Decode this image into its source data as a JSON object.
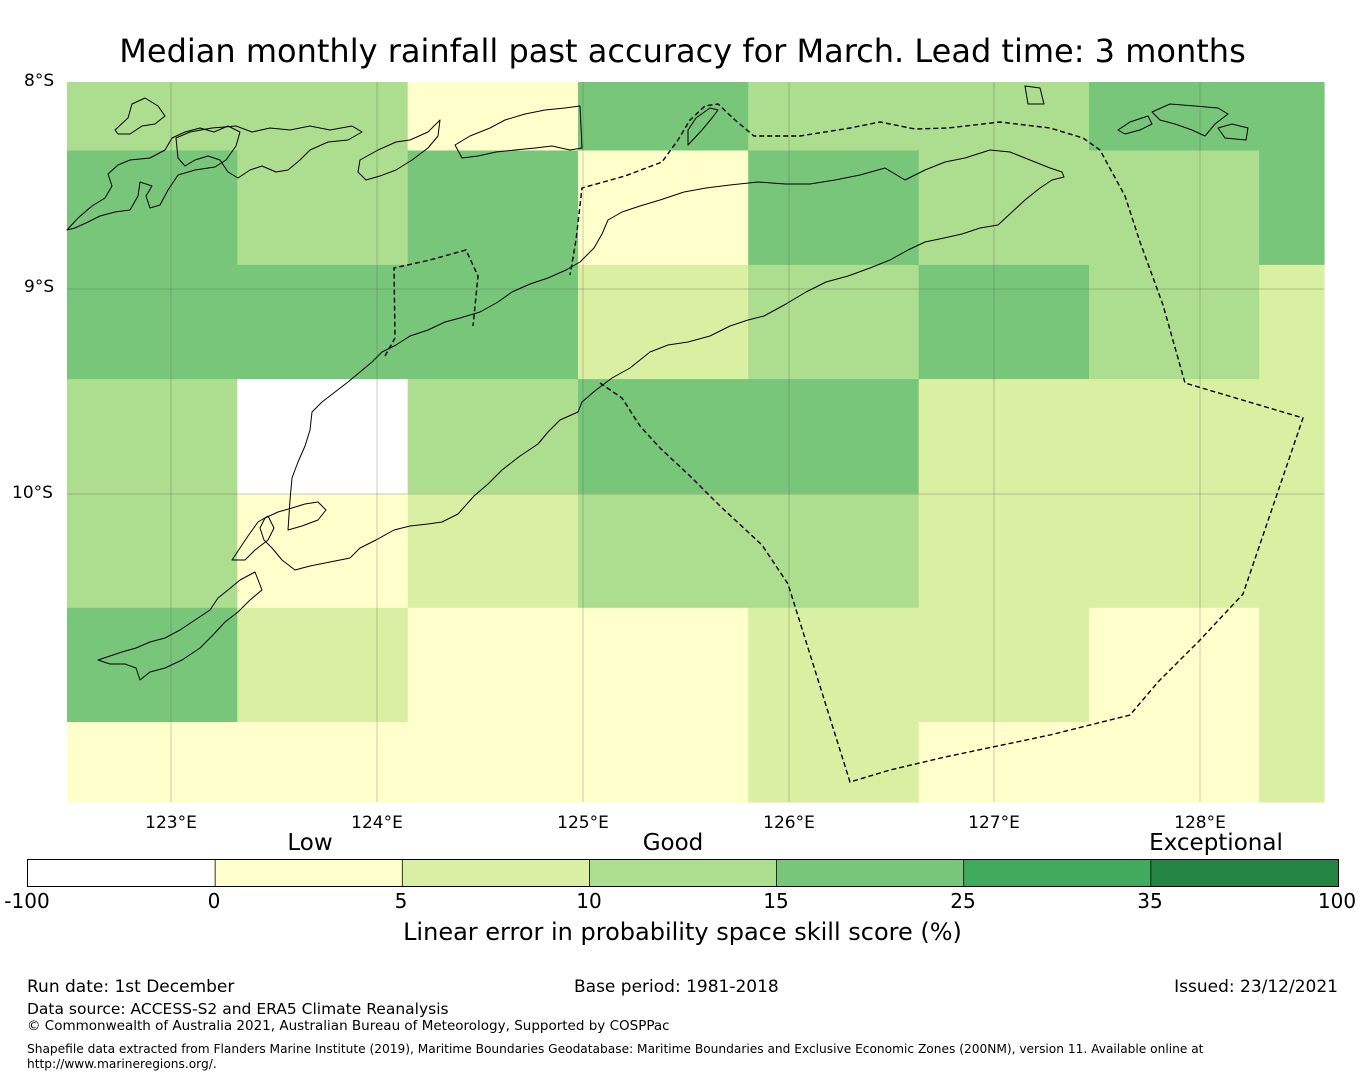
{
  "title": "Median monthly rainfall past accuracy for March. Lead time: 3 months",
  "map": {
    "lat_labels": [
      "8°S",
      "9°S",
      "10°S"
    ],
    "lon_labels": [
      "123°E",
      "124°E",
      "125°E",
      "126°E",
      "127°E",
      "128°E"
    ],
    "lon_range": [
      122.5,
      128.65
    ],
    "lat_range": [
      -8.0,
      -11.5
    ],
    "grid_lons": [
      122.5,
      123.333,
      124.167,
      125.0,
      125.833,
      126.667,
      127.5,
      128.333,
      128.65
    ],
    "grid_lats": [
      -8.0,
      -8.333,
      -8.889,
      -9.444,
      -10.0,
      -10.556,
      -11.111,
      -11.5
    ],
    "skill_cells": [
      [
        10,
        10,
        0,
        15,
        10,
        10,
        15,
        15
      ],
      [
        15,
        10,
        15,
        0,
        15,
        10,
        10,
        15
      ],
      [
        15,
        15,
        15,
        5,
        10,
        15,
        10,
        5
      ],
      [
        10,
        -100,
        10,
        15,
        15,
        5,
        5,
        5
      ],
      [
        10,
        0,
        5,
        10,
        10,
        5,
        5,
        5
      ],
      [
        15,
        5,
        0,
        0,
        5,
        5,
        0,
        5
      ],
      [
        0,
        0,
        0,
        0,
        5,
        0,
        0,
        5
      ]
    ]
  },
  "colorbar": {
    "category_labels": [
      "Low",
      "Good",
      "Exceptional"
    ],
    "tick_labels": [
      "-100",
      "0",
      "5",
      "10",
      "15",
      "25",
      "35",
      "100"
    ],
    "colors": [
      "#ffffff",
      "#ffffcc",
      "#d9f0a3",
      "#addd8e",
      "#78c679",
      "#41ab5d",
      "#238443"
    ],
    "title": "Linear error in probability space skill score (%)"
  },
  "footer": {
    "run_date": "Run date: 1st December",
    "base_period": "Base period: 1981-2018",
    "issued": "Issued: 23/12/2021",
    "data_source": "Data source: ACCESS-S2 and ERA5 Climate Reanalysis",
    "copyright": "© Commonwealth of Australia 2021, Australian Bureau of Meteorology, Supported by COSPPac",
    "shapefile_line1": "Shapefile data extracted from Flanders Marine Institute (2019), Maritime Boundaries Geodatabase: Maritime Boundaries and Exclusive Economic Zones (200NM), version 11. Available online at",
    "shapefile_line2": "http://www.marineregions.org/."
  }
}
